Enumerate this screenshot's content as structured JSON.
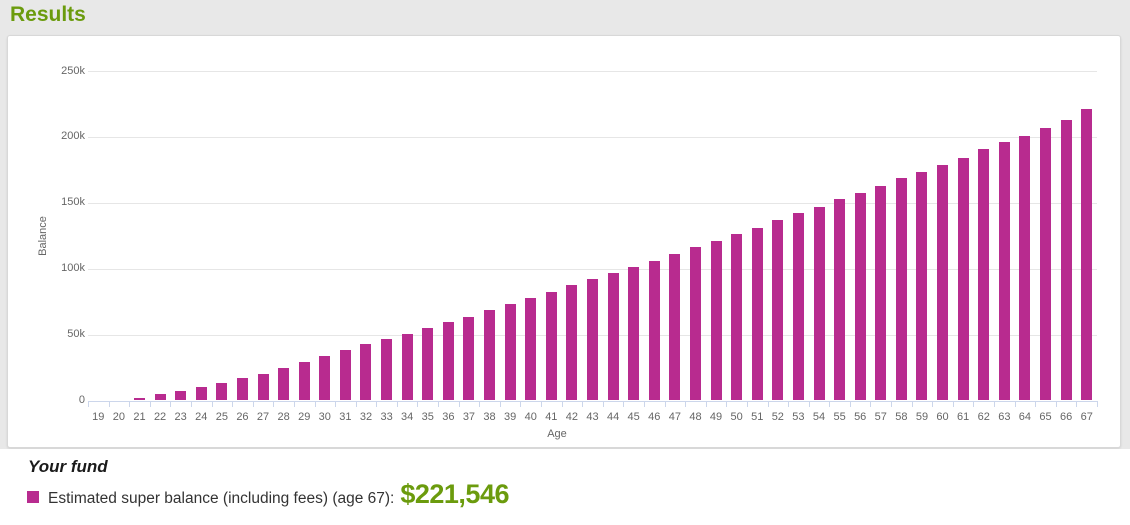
{
  "page": {
    "title": "Results",
    "colors": {
      "accent_green": "#6b9b0d",
      "bar_magenta": "#b82b8f",
      "page_background": "#e8e8e8",
      "panel_background": "#ffffff",
      "axis_line": "#ccd6eb",
      "gridline": "#e6e6e6",
      "axis_text": "#666666"
    }
  },
  "chart_data": {
    "type": "bar",
    "title": "Results",
    "xlabel": "Age",
    "ylabel": "Balance",
    "grid": true,
    "legend_position": "bottom",
    "ylim": [
      0,
      250000
    ],
    "ytick_values": [
      0,
      50000,
      100000,
      150000,
      200000,
      250000
    ],
    "ytick_labels": [
      "0",
      "50k",
      "100k",
      "150k",
      "200k",
      "250k"
    ],
    "bar_color": "#b82b8f",
    "series_name": "Estimated super balance (including fees)",
    "categories": [
      19,
      20,
      21,
      22,
      23,
      24,
      25,
      26,
      27,
      28,
      29,
      30,
      31,
      32,
      33,
      34,
      35,
      36,
      37,
      38,
      39,
      40,
      41,
      42,
      43,
      44,
      45,
      46,
      47,
      48,
      49,
      50,
      51,
      52,
      53,
      54,
      55,
      56,
      57,
      58,
      59,
      60,
      61,
      62,
      63,
      64,
      65,
      66,
      67
    ],
    "values": [
      0,
      0,
      2000,
      4600,
      7400,
      10600,
      13600,
      16700,
      20300,
      24300,
      29000,
      33900,
      38100,
      42700,
      46800,
      50600,
      54800,
      59400,
      63700,
      68500,
      73000,
      77600,
      82600,
      87700,
      92000,
      96700,
      101600,
      105900,
      110900,
      116200,
      121000,
      126100,
      131200,
      136600,
      142000,
      147100,
      152600,
      157200,
      163000,
      168900,
      173600,
      178700,
      184200,
      190800,
      196300,
      201000,
      206900,
      213200,
      221546
    ],
    "final_value": 221546
  },
  "legend": {
    "group_title": "Your fund",
    "item_label": "Estimated super balance (including fees) (age 67):",
    "item_value": "$221,546",
    "swatch_color": "#b82b8f"
  }
}
